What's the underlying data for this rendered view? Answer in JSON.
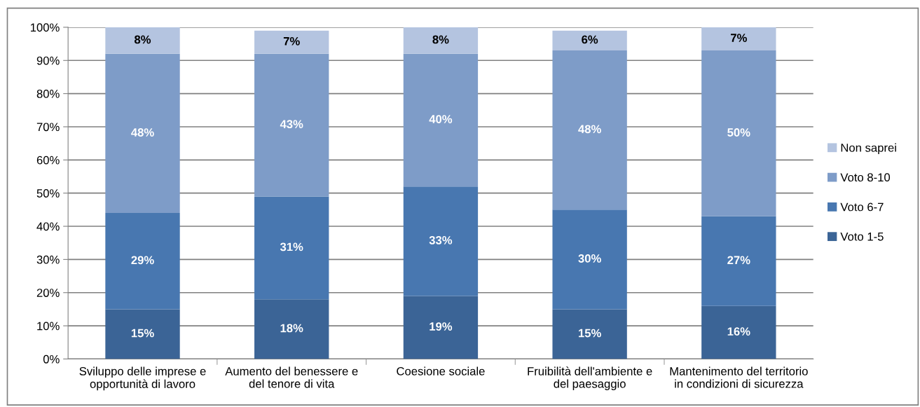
{
  "chart_data": {
    "type": "bar",
    "stacked": true,
    "categories": [
      "Sviluppo delle imprese e\nopportunità di lavoro",
      "Aumento del benessere e\ndel tenore di vita",
      "Coesione sociale",
      "Fruibilità dell'ambiente e\ndel paesaggio",
      "Mantenimento del territorio\nin condizioni di sicurezza"
    ],
    "series": [
      {
        "name": "Voto 1-5",
        "color": "#3b6496",
        "values": [
          15,
          18,
          19,
          15,
          16
        ],
        "value_labels": [
          "15%",
          "18%",
          "19%",
          "15%",
          "16%"
        ]
      },
      {
        "name": "Voto 6-7",
        "color": "#4877b0",
        "values": [
          29,
          31,
          33,
          30,
          27
        ],
        "value_labels": [
          "29%",
          "31%",
          "33%",
          "30%",
          "27%"
        ]
      },
      {
        "name": "Voto 8-10",
        "color": "#7e9cc8",
        "values": [
          48,
          43,
          40,
          48,
          50
        ],
        "value_labels": [
          "48%",
          "43%",
          "40%",
          "48%",
          "50%"
        ]
      },
      {
        "name": "Non saprei",
        "color": "#b4c4e0",
        "values": [
          8,
          7,
          8,
          6,
          7
        ],
        "value_labels": [
          "8%",
          "7%",
          "8%",
          "6%",
          "7%"
        ]
      }
    ],
    "ylim": [
      0,
      100
    ],
    "yticks": [
      {
        "value": 0,
        "label": "0%"
      },
      {
        "value": 10,
        "label": "10%"
      },
      {
        "value": 20,
        "label": "20%"
      },
      {
        "value": 30,
        "label": "30%"
      },
      {
        "value": 40,
        "label": "40%"
      },
      {
        "value": 50,
        "label": "50%"
      },
      {
        "value": 60,
        "label": "60%"
      },
      {
        "value": 70,
        "label": "70%"
      },
      {
        "value": 80,
        "label": "80%"
      },
      {
        "value": 90,
        "label": "90%"
      },
      {
        "value": 100,
        "label": "100%"
      }
    ],
    "grid": "y",
    "legend": "right"
  }
}
